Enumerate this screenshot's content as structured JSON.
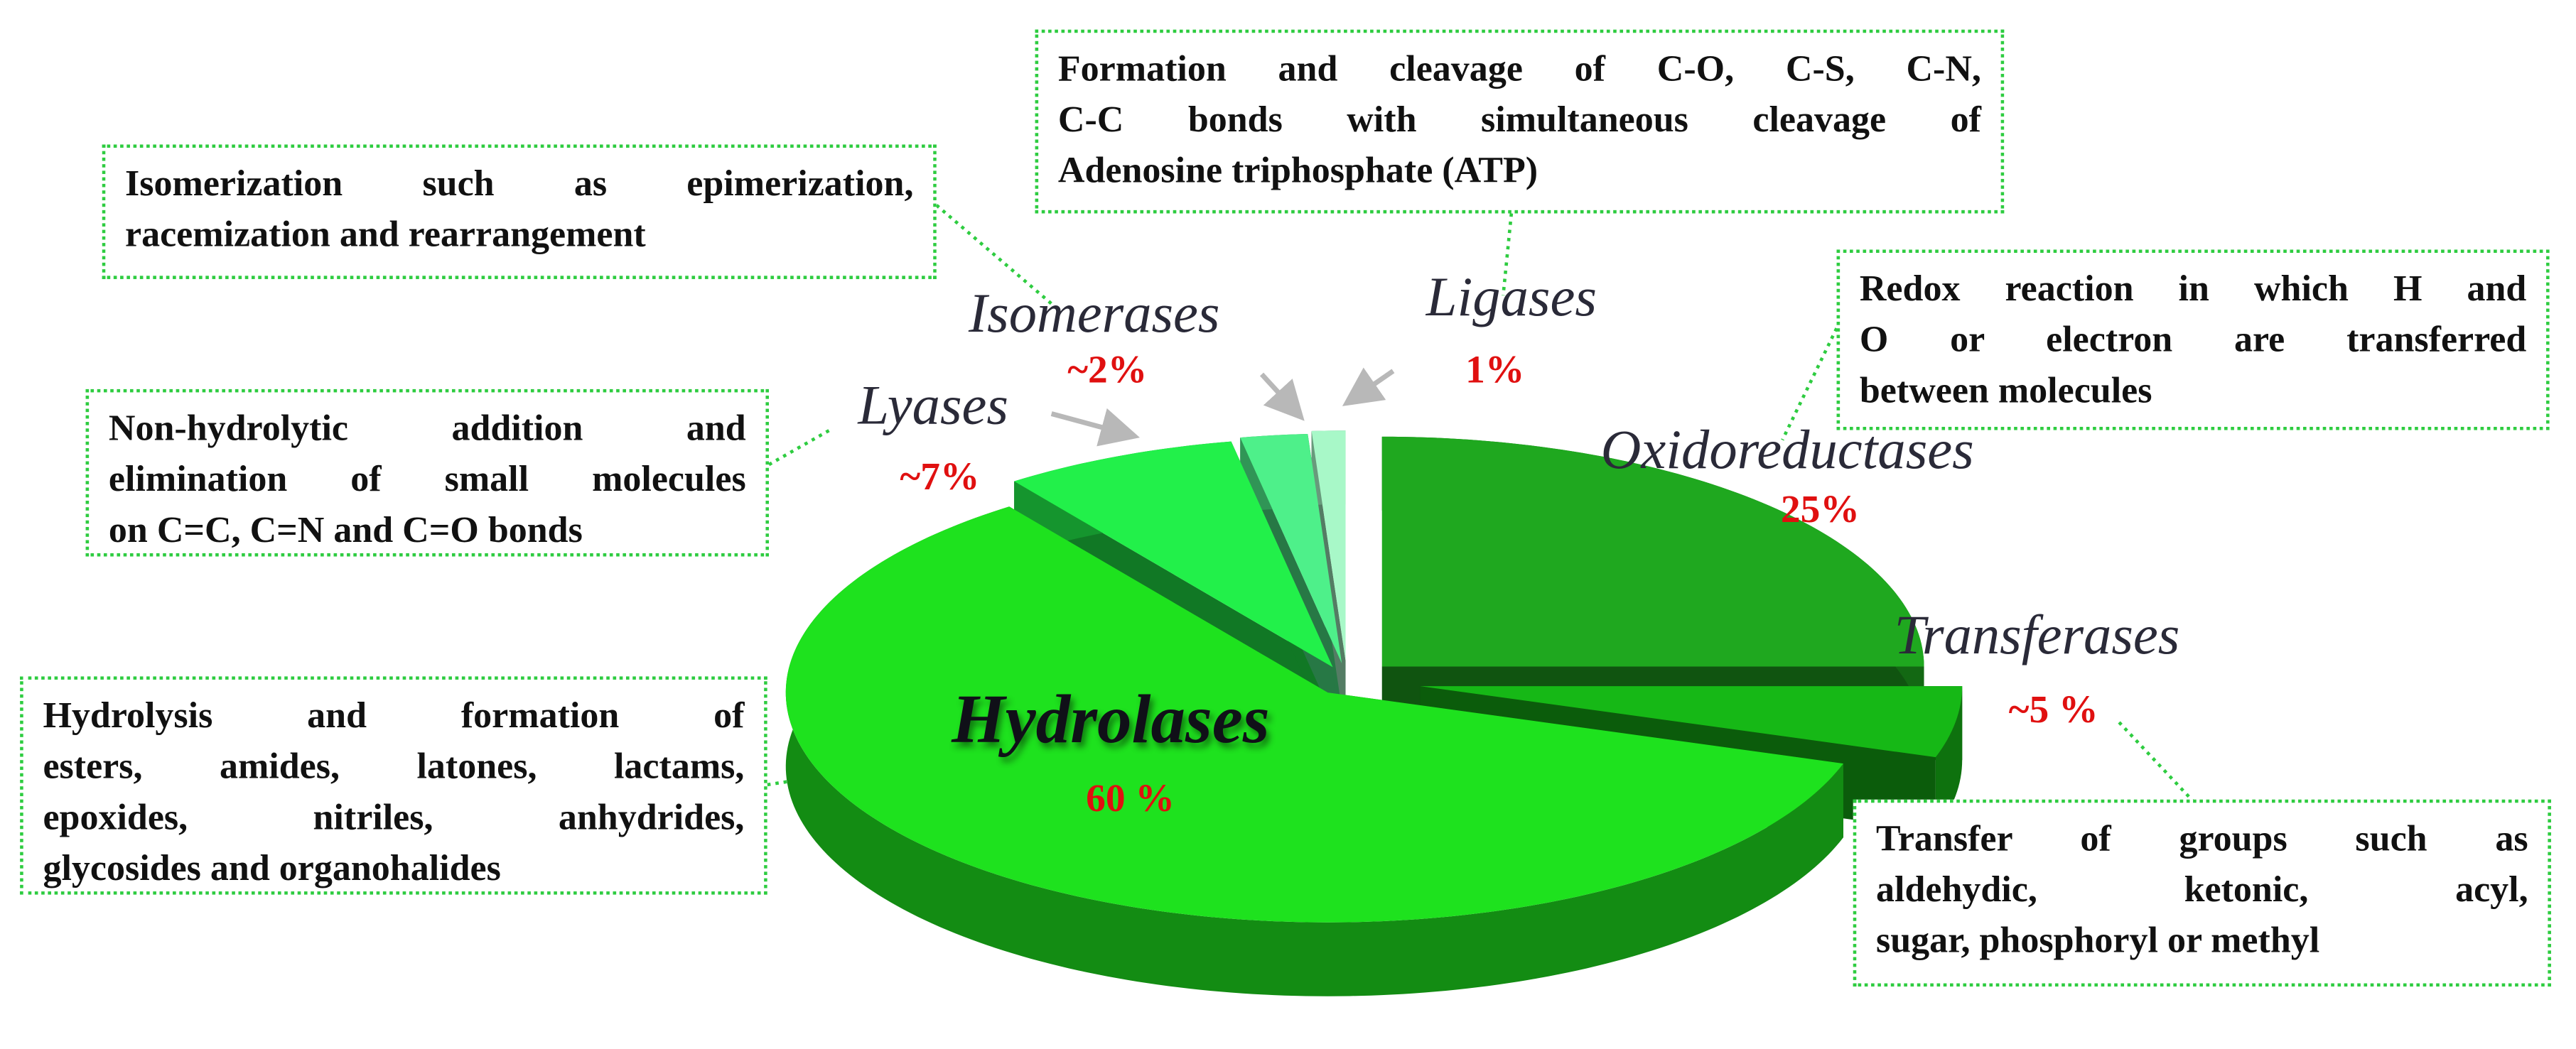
{
  "chart_data": {
    "type": "pie",
    "categories": [
      "Oxidoreductases",
      "Transferases",
      "Hydrolases",
      "Lyases",
      "Isomerases",
      "Ligases"
    ],
    "values": [
      25,
      5,
      60,
      7,
      2,
      1
    ],
    "value_labels": [
      "25%",
      "~5 %",
      "60 %",
      "~7%",
      "~2%",
      "1%"
    ],
    "colors": [
      "#1fa81f",
      "#16b816",
      "#1ee21e",
      "#22f04a",
      "#4ef08a",
      "#a8f8c8"
    ],
    "annotations": [
      {
        "lines": [
          "Redox reaction in which H and",
          "O or electron are transferred",
          "between molecules"
        ]
      },
      {
        "lines": [
          "Transfer of groups such as",
          "aldehydic, ketonic, acyl,",
          "sugar, phosphoryl or methyl"
        ]
      },
      {
        "lines": [
          "Hydrolysis and formation of",
          "esters, amides, latones, lactams,",
          "epoxides, nitriles, anhydrides,",
          "glycosides and organohalides"
        ]
      },
      {
        "lines": [
          "Non-hydrolytic addition and",
          "elimination of small molecules",
          "on C=C, C=N and C=O bonds"
        ]
      },
      {
        "lines": [
          "Isomerization such as epimerization,",
          "racemization and rearrangement"
        ]
      },
      {
        "lines": [
          "Formation and cleavage of C-O, C-S, C-N,",
          "C-C bonds with simultaneous cleavage of",
          "Adenosine triphosphate (ATP)"
        ]
      }
    ]
  }
}
